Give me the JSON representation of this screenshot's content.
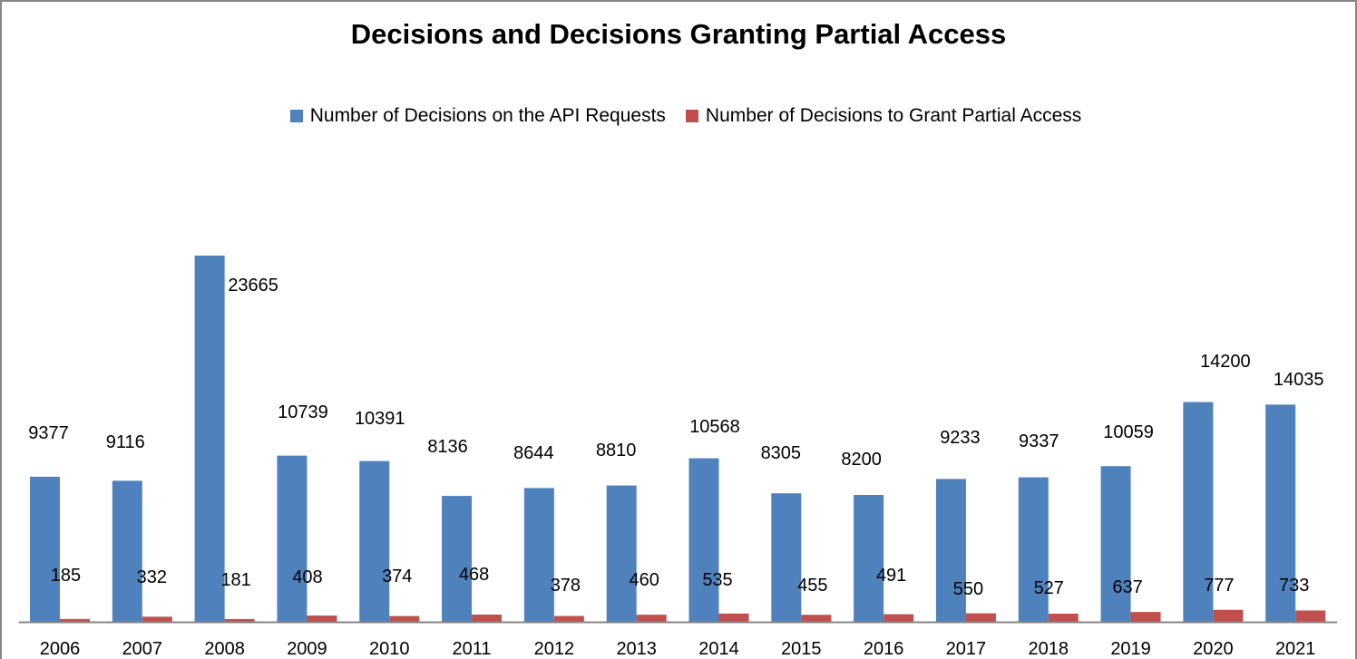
{
  "chart_data": {
    "type": "bar",
    "title": "Decisions and Decisions Granting Partial Access",
    "xlabel": "",
    "ylabel": "",
    "categories": [
      "2006",
      "2007",
      "2008",
      "2009",
      "2010",
      "2011",
      "2012",
      "2013",
      "2014",
      "2015",
      "2016",
      "2017",
      "2018",
      "2019",
      "2020",
      "2021"
    ],
    "series": [
      {
        "name": "Number of Decisions on the API Requests",
        "color": "#4f81bd",
        "values": [
          9377,
          9116,
          23665,
          10739,
          10391,
          8136,
          8644,
          8810,
          10568,
          8305,
          8200,
          9233,
          9337,
          10059,
          14200,
          14035
        ]
      },
      {
        "name": "Number of Decisions to Grant Partial Access",
        "color": "#c0504d",
        "values": [
          185,
          332,
          181,
          408,
          374,
          468,
          378,
          460,
          535,
          455,
          491,
          550,
          527,
          637,
          777,
          733
        ]
      }
    ],
    "ylim": [
      0,
      31100
    ],
    "grid": false,
    "y_axis_visible": false,
    "data_labels": true,
    "legend_position": "top"
  }
}
